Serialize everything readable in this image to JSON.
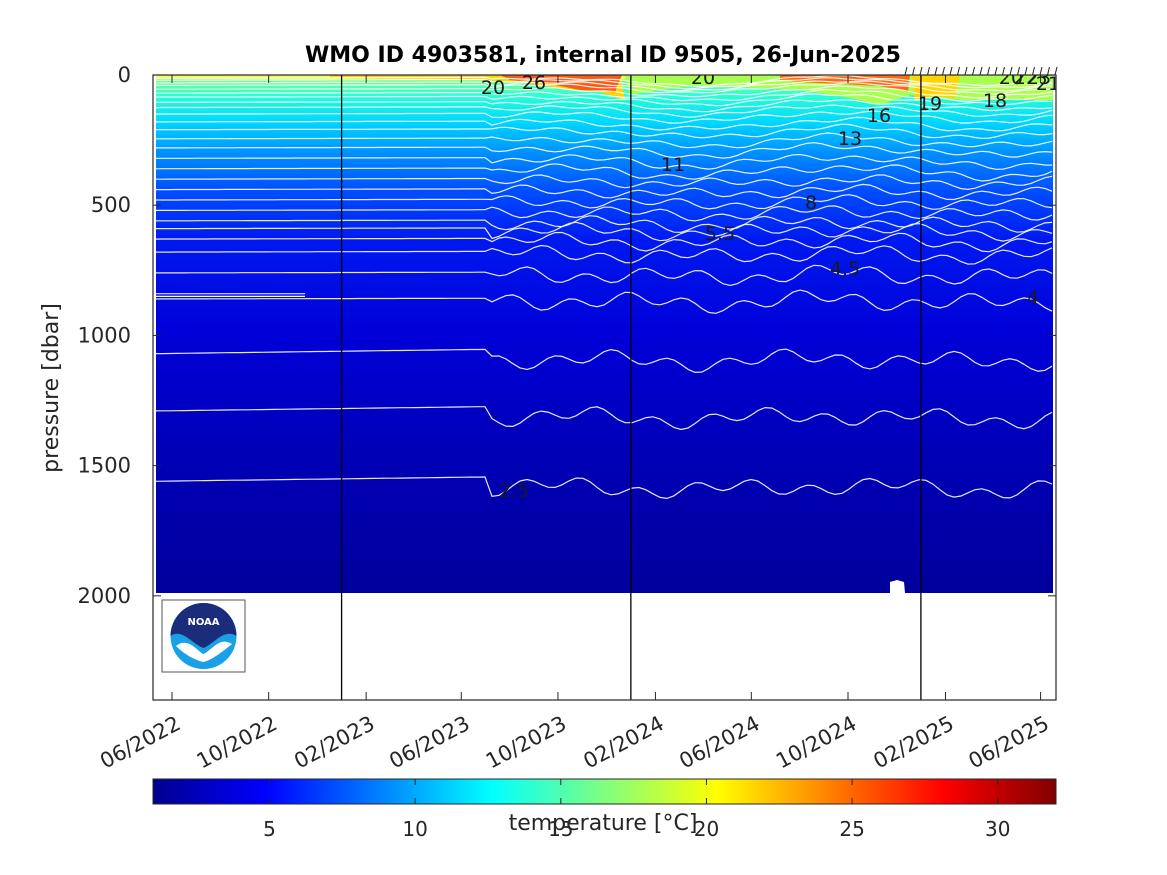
{
  "chart_data": {
    "type": "heatmap",
    "title": "WMO ID 4903581, internal ID 9505, 26-Jun-2025",
    "xlabel": "",
    "ylabel": "pressure [dbar]",
    "x_ticks": [
      "06/2022",
      "10/2022",
      "02/2023",
      "06/2023",
      "10/2023",
      "02/2024",
      "06/2024",
      "10/2024",
      "02/2025",
      "06/2025"
    ],
    "y_ticks": [
      "0",
      "500",
      "1000",
      "1500",
      "2000"
    ],
    "ylim": [
      0,
      2400
    ],
    "y_reversed": true,
    "data_bottom_pressure": 2000,
    "year_markers": [
      "2023-01-01",
      "2024-01-01",
      "2025-01-01"
    ],
    "contour_levels": [
      2.5,
      4,
      4.5,
      5.5,
      8,
      11,
      13,
      16,
      18,
      19,
      20,
      21,
      22,
      23,
      26
    ],
    "contour_labels": [
      {
        "text": "20"
      },
      {
        "text": "26"
      },
      {
        "text": "20"
      },
      {
        "text": "16"
      },
      {
        "text": "19"
      },
      {
        "text": "18"
      },
      {
        "text": "20"
      },
      {
        "text": "22"
      },
      {
        "text": "23"
      },
      {
        "text": "21"
      },
      {
        "text": "13"
      },
      {
        "text": "11"
      },
      {
        "text": "8"
      },
      {
        "text": "5.5"
      },
      {
        "text": "4.5"
      },
      {
        "text": "4"
      },
      {
        "text": "2.5"
      }
    ],
    "colorbar": {
      "label": "temperature [°C]",
      "range": [
        1,
        32
      ],
      "ticks": [
        "5",
        "10",
        "15",
        "20",
        "25",
        "30"
      ],
      "colormap": "jet"
    },
    "grid": false,
    "logo": "noaa-logo"
  }
}
